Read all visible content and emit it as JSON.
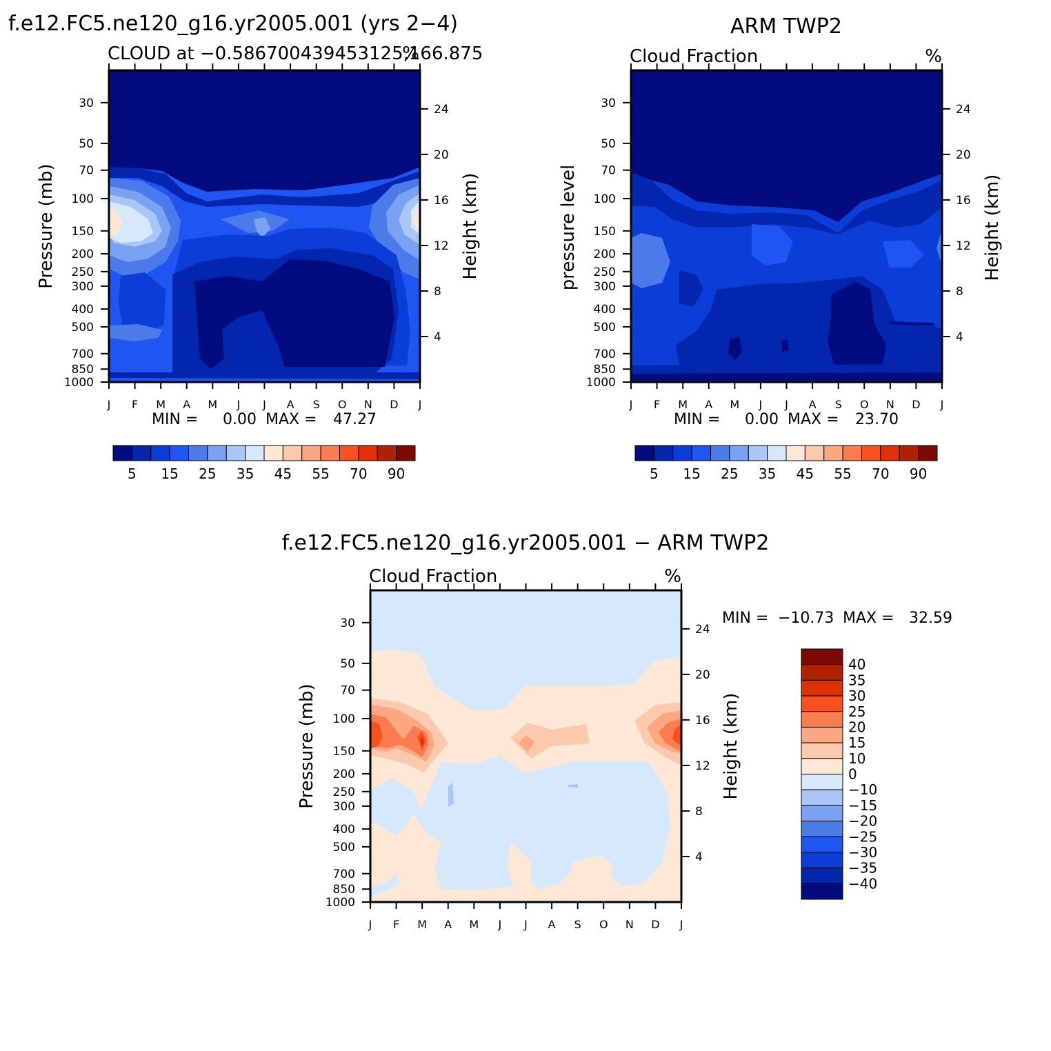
{
  "chart_data": [
    {
      "type": "heatmap",
      "title": "f.e12.FC5.ne120_g16.yr2005.001 (yrs 2-4)",
      "subtitle_left": "CLOUD at -0.586700439453125,166.875",
      "subtitle_right": "%",
      "ylabel": "Pressure (mb)",
      "ylabel_right": "Height (km)",
      "x_ticks": [
        "J",
        "F",
        "M",
        "A",
        "M",
        "J",
        "J",
        "A",
        "S",
        "O",
        "N",
        "D",
        "J"
      ],
      "y_ticks": [
        30,
        50,
        70,
        100,
        150,
        200,
        250,
        300,
        400,
        500,
        700,
        850,
        1000
      ],
      "y_ticks_right": [
        24,
        20,
        16,
        12,
        8,
        4
      ],
      "stats": {
        "min_label": "MIN =",
        "min": "0.00",
        "max_label": "MAX =",
        "max": "47.27"
      },
      "colorbar_labels": [
        "5",
        "15",
        "25",
        "35",
        "45",
        "55",
        "70",
        "90"
      ],
      "colorbar_colors": [
        "#020c7f",
        "#0226ad",
        "#0a3ed6",
        "#1f55f0",
        "#4a7be8",
        "#7aa2f2",
        "#aac6f7",
        "#d6e8fb",
        "#fde8d6",
        "#fdc9ad",
        "#fca77f",
        "#fb7d4f",
        "#f8501e",
        "#de3203",
        "#b02102",
        "#7d0a02"
      ],
      "z_range": [
        0,
        47.27
      ]
    },
    {
      "type": "heatmap",
      "title": "ARM TWP2",
      "subtitle_left": "Cloud Fraction",
      "subtitle_right": "%",
      "ylabel": "pressure level",
      "ylabel_right": "Height (km)",
      "x_ticks": [
        "J",
        "F",
        "M",
        "A",
        "M",
        "J",
        "J",
        "A",
        "S",
        "O",
        "N",
        "D",
        "J"
      ],
      "y_ticks": [
        30,
        50,
        70,
        100,
        150,
        200,
        250,
        300,
        400,
        500,
        700,
        850,
        1000
      ],
      "y_ticks_right": [
        24,
        20,
        16,
        12,
        8,
        4
      ],
      "stats": {
        "min_label": "MIN =",
        "min": "0.00",
        "max_label": "MAX =",
        "max": "23.70"
      },
      "colorbar_labels": [
        "5",
        "15",
        "25",
        "35",
        "45",
        "55",
        "70",
        "90"
      ],
      "colorbar_colors": [
        "#020c7f",
        "#0226ad",
        "#0a3ed6",
        "#1f55f0",
        "#4a7be8",
        "#7aa2f2",
        "#aac6f7",
        "#d6e8fb",
        "#fde8d6",
        "#fdc9ad",
        "#fca77f",
        "#fb7d4f",
        "#f8501e",
        "#de3203",
        "#b02102",
        "#7d0a02"
      ],
      "z_range": [
        0,
        23.7
      ]
    },
    {
      "type": "heatmap",
      "title": "f.e12.FC5.ne120_g16.yr2005.001 - ARM TWP2",
      "subtitle_left": "Cloud Fraction",
      "subtitle_right": "%",
      "ylabel": "Pressure (mb)",
      "ylabel_right": "Height (km)",
      "x_ticks": [
        "J",
        "F",
        "M",
        "A",
        "M",
        "J",
        "J",
        "A",
        "S",
        "O",
        "N",
        "D",
        "J"
      ],
      "y_ticks": [
        30,
        50,
        70,
        100,
        150,
        200,
        250,
        300,
        400,
        500,
        700,
        850,
        1000
      ],
      "y_ticks_right": [
        24,
        20,
        16,
        12,
        8,
        4
      ],
      "stats": {
        "min_label": "MIN =",
        "min": "-10.73",
        "max_label": "MAX =",
        "max": "32.59"
      },
      "colorbar_labels": [
        "40",
        "35",
        "30",
        "25",
        "20",
        "15",
        "10",
        "0",
        "-10",
        "-15",
        "-20",
        "-25",
        "-30",
        "-35",
        "-40"
      ],
      "colorbar_colors": [
        "#7d0a02",
        "#b02102",
        "#de3203",
        "#f8501e",
        "#fb7d4f",
        "#fca77f",
        "#fdc9ad",
        "#fde8d6",
        "#d6e8fb",
        "#aac6f7",
        "#7aa2f2",
        "#4a7be8",
        "#1f55f0",
        "#0a3ed6",
        "#0226ad",
        "#020c7f"
      ],
      "z_range": [
        -10.73,
        32.59
      ]
    }
  ]
}
